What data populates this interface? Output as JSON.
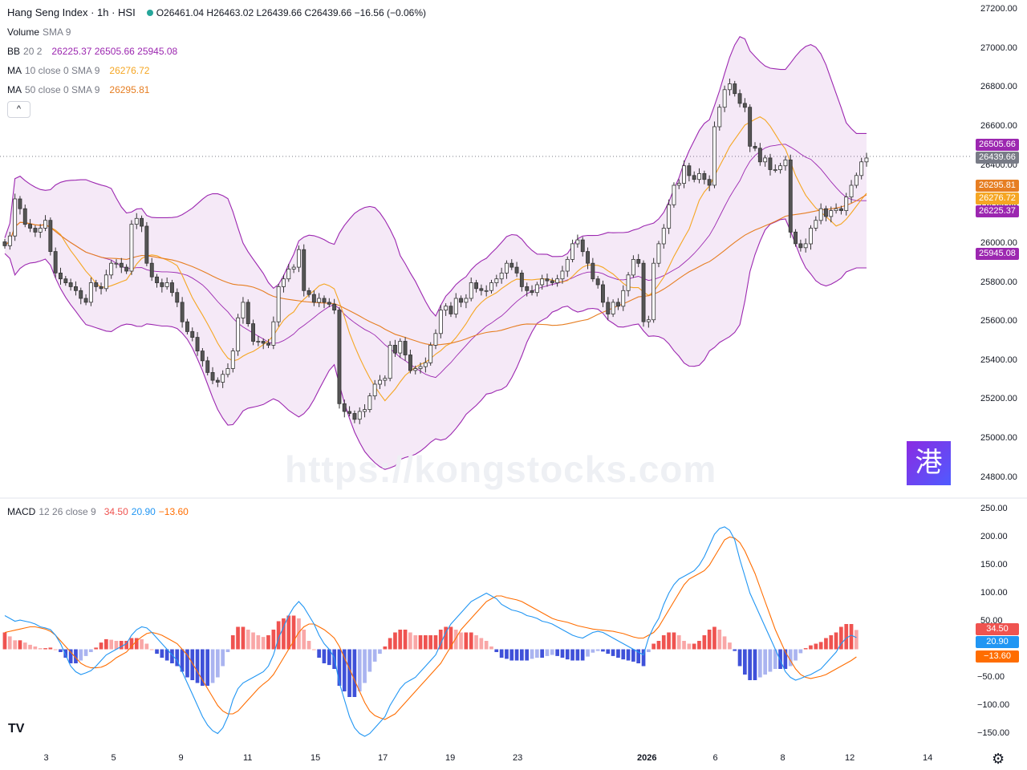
{
  "header": {
    "title": "Hang Seng Index · 1h · HSI",
    "ohlc": "O26461.04  H26463.02  L26439.66  C26439.66  −16.56 (−0.06%)"
  },
  "legends": {
    "volume": {
      "name": "Volume",
      "params": "SMA 9"
    },
    "bb": {
      "name": "BB",
      "params": "20 2",
      "values": "26225.37  26505.66  25945.08"
    },
    "ma10": {
      "name": "MA",
      "params": "10 close 0 SMA 9",
      "value": "26276.72"
    },
    "ma50": {
      "name": "MA",
      "params": "50 close 0 SMA 9",
      "value": "26295.81"
    },
    "macd": {
      "name": "MACD",
      "params": "12 26 close 9",
      "v1": "34.50",
      "v2": "20.90",
      "v3": "−13.60"
    }
  },
  "collapse_glyph": "^",
  "watermark": "https://kongstocks.com",
  "logo_glyph": "港",
  "tv_logo": "TV",
  "gear_glyph": "⚙",
  "colors": {
    "up": "#ffffff",
    "down": "#555555",
    "bb": "#9c27b0",
    "ma10": "#f5a623",
    "ma50": "#e67e22",
    "macd": "#2196f3",
    "signal": "#ff6d00",
    "hist_up": "#ef5350",
    "hist_down": "#3f51d9",
    "last": "#787b86"
  },
  "price_tags": [
    {
      "text": "26505.66",
      "price": 26505.66,
      "color": "#9c27b0"
    },
    {
      "text": "26439.66",
      "price": 26439.66,
      "color": "#787b86"
    },
    {
      "text": "26295.81",
      "price": 26295.81,
      "color": "#e67e22"
    },
    {
      "text": "26276.72",
      "price": 26276.72,
      "color": "#f5a623"
    },
    {
      "text": "26225.37",
      "price": 26225.37,
      "color": "#9c27b0"
    },
    {
      "text": "25945.08",
      "price": 25945.08,
      "color": "#9c27b0"
    }
  ],
  "macd_tags": [
    {
      "text": "34.50",
      "value": 34.5,
      "color": "#ef5350"
    },
    {
      "text": "20.90",
      "value": 20.9,
      "color": "#2196f3"
    },
    {
      "text": "−13.60",
      "value": -13.6,
      "color": "#ff6d00"
    }
  ],
  "chart_data": {
    "type": "candlestick",
    "price_axis": {
      "ylim": [
        24700,
        27250
      ],
      "ticks": [
        "27200.00",
        "27000.00",
        "26800.00",
        "26600.00",
        "26400.00",
        "26200.00",
        "26000.00",
        "25800.00",
        "25600.00",
        "25400.00",
        "25200.00",
        "25000.00",
        "24800.00"
      ]
    },
    "macd_axis": {
      "ylim": [
        -165,
        265
      ],
      "ticks": [
        "250.00",
        "200.00",
        "150.00",
        "100.00",
        "50.00",
        "−50.00",
        "−100.00",
        "−150.00"
      ]
    },
    "x_ticks": [
      "3",
      "5",
      "9",
      "11",
      "15",
      "17",
      "19",
      "23",
      "2026",
      "6",
      "8",
      "12",
      "14"
    ],
    "close": [
      25990,
      26040,
      26230,
      26180,
      26100,
      26080,
      26060,
      26080,
      26120,
      25960,
      25850,
      25820,
      25800,
      25780,
      25760,
      25720,
      25700,
      25800,
      25780,
      25770,
      25840,
      25900,
      25900,
      25880,
      25860,
      26100,
      26130,
      26090,
      25900,
      25830,
      25800,
      25780,
      25800,
      25750,
      25700,
      25600,
      25550,
      25520,
      25450,
      25400,
      25340,
      25300,
      25290,
      25330,
      25360,
      25450,
      25620,
      25700,
      25590,
      25500,
      25500,
      25490,
      25480,
      25600,
      25780,
      25820,
      25870,
      25880,
      25970,
      25760,
      25740,
      25700,
      25720,
      25700,
      25690,
      25660,
      25180,
      25140,
      25130,
      25100,
      25140,
      25150,
      25220,
      25280,
      25300,
      25310,
      25480,
      25440,
      25500,
      25430,
      25350,
      25360,
      25370,
      25390,
      25480,
      25540,
      25660,
      25680,
      25640,
      25720,
      25700,
      25720,
      25800,
      25770,
      25760,
      25760,
      25800,
      25820,
      25850,
      25900,
      25880,
      25850,
      25780,
      25760,
      25750,
      25790,
      25820,
      25810,
      25800,
      25820,
      25860,
      25920,
      26000,
      26020,
      25960,
      25900,
      25820,
      25790,
      25700,
      25640,
      25700,
      25680,
      25760,
      25840,
      25920,
      25900,
      25600,
      25610,
      25900,
      26000,
      26080,
      26200,
      26300,
      26310,
      26400,
      26350,
      26330,
      26360,
      26330,
      26300,
      26600,
      26700,
      26790,
      26820,
      26770,
      26720,
      26700,
      26500,
      26490,
      26420,
      26440,
      26380,
      26380,
      26400,
      26430,
      26060,
      26000,
      25980,
      26000,
      26080,
      26120,
      26180,
      26140,
      26170,
      26180,
      26170,
      26240,
      26300,
      26350,
      26420,
      26439.66
    ],
    "macd_line": [
      60,
      55,
      50,
      52,
      50,
      48,
      45,
      40,
      38,
      35,
      25,
      10,
      -10,
      -30,
      -40,
      -45,
      -42,
      -38,
      -30,
      -20,
      -10,
      -5,
      0,
      5,
      10,
      25,
      35,
      40,
      38,
      30,
      20,
      10,
      0,
      -10,
      -20,
      -40,
      -60,
      -80,
      -100,
      -120,
      -135,
      -145,
      -150,
      -140,
      -120,
      -90,
      -70,
      -60,
      -55,
      -50,
      -45,
      -40,
      -30,
      -10,
      20,
      40,
      60,
      75,
      85,
      75,
      60,
      45,
      25,
      10,
      0,
      -15,
      -60,
      -90,
      -120,
      -140,
      -150,
      -155,
      -150,
      -140,
      -130,
      -120,
      -100,
      -85,
      -70,
      -60,
      -55,
      -50,
      -40,
      -30,
      -20,
      -10,
      10,
      30,
      45,
      55,
      65,
      75,
      85,
      90,
      95,
      100,
      95,
      90,
      80,
      75,
      70,
      68,
      65,
      60,
      58,
      55,
      50,
      48,
      45,
      40,
      35,
      30,
      25,
      22,
      20,
      25,
      30,
      32,
      30,
      25,
      20,
      15,
      10,
      5,
      0,
      -5,
      -10,
      20,
      40,
      55,
      80,
      100,
      115,
      125,
      130,
      135,
      140,
      150,
      165,
      185,
      205,
      215,
      218,
      212,
      195,
      160,
      130,
      100,
      80,
      60,
      40,
      20,
      0,
      -20,
      -40,
      -50,
      -55,
      -52,
      -48,
      -45,
      -40,
      -35,
      -25,
      -15,
      -5,
      10,
      20,
      25,
      20.9
    ],
    "signal_line": [
      30,
      32,
      34,
      36,
      38,
      40,
      40,
      38,
      36,
      32,
      25,
      15,
      5,
      -5,
      -15,
      -25,
      -30,
      -33,
      -33,
      -32,
      -28,
      -22,
      -15,
      -10,
      -5,
      5,
      15,
      22,
      28,
      30,
      28,
      25,
      20,
      15,
      10,
      0,
      -10,
      -25,
      -40,
      -55,
      -70,
      -85,
      -100,
      -110,
      -115,
      -115,
      -110,
      -100,
      -90,
      -80,
      -70,
      -62,
      -55,
      -45,
      -30,
      -15,
      0,
      15,
      30,
      40,
      45,
      45,
      40,
      35,
      28,
      20,
      5,
      -15,
      -35,
      -55,
      -75,
      -95,
      -110,
      -118,
      -122,
      -125,
      -120,
      -115,
      -105,
      -95,
      -85,
      -75,
      -65,
      -55,
      -45,
      -35,
      -25,
      -10,
      5,
      20,
      35,
      45,
      55,
      65,
      75,
      85,
      90,
      95,
      95,
      92,
      90,
      88,
      85,
      80,
      75,
      70,
      65,
      60,
      55,
      52,
      50,
      48,
      45,
      42,
      40,
      38,
      36,
      35,
      34,
      33,
      32,
      30,
      28,
      25,
      22,
      20,
      20,
      25,
      30,
      40,
      55,
      70,
      85,
      100,
      115,
      125,
      130,
      135,
      140,
      150,
      165,
      180,
      195,
      200,
      198,
      190,
      175,
      155,
      135,
      110,
      85,
      60,
      35,
      15,
      -5,
      -20,
      -35,
      -45,
      -50,
      -52,
      -50,
      -48,
      -45,
      -40,
      -35,
      -30,
      -25,
      -20,
      -13.6
    ]
  }
}
